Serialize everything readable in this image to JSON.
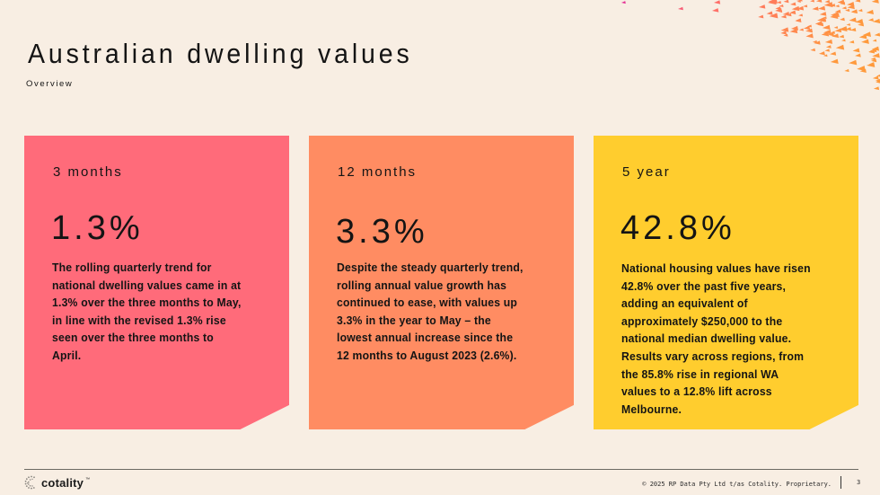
{
  "header": {
    "title": "Australian dwelling values",
    "subtitle": "Overview"
  },
  "cards": [
    {
      "period": "3 months",
      "value": "1.3%",
      "description": "The rolling quarterly trend for national dwelling values came in at 1.3% over the three months to May, in line with the revised 1.3% rise seen over the three months to April.",
      "color": "#ff6b7a"
    },
    {
      "period": "12 months",
      "value": "3.3%",
      "description": "Despite the steady quarterly trend, rolling annual value growth has continued to ease, with values up 3.3% in the year to May – the lowest annual increase since the 12 months to August 2023 (2.6%).",
      "color": "#ff8c62"
    },
    {
      "period": "5 year",
      "value": "42.8%",
      "description": "National housing values have risen 42.8% over the past five years, adding an equivalent of approximately $250,000 to the national median dwelling value. Results vary across regions, from the 85.8% rise in regional WA values to a 12.8% lift across Melbourne.",
      "color": "#ffcd2e"
    }
  ],
  "footer": {
    "logo_text": "cotality",
    "logo_mark": "™",
    "copyright": "© 2025 RP Data Pty Ltd t/as Cotality. Proprietary.",
    "page_number": "3"
  },
  "colors": {
    "background": "#f8eee3",
    "decor_start": "#e0249a",
    "decor_mid": "#ff6b6b",
    "decor_end": "#ff9a3c"
  }
}
